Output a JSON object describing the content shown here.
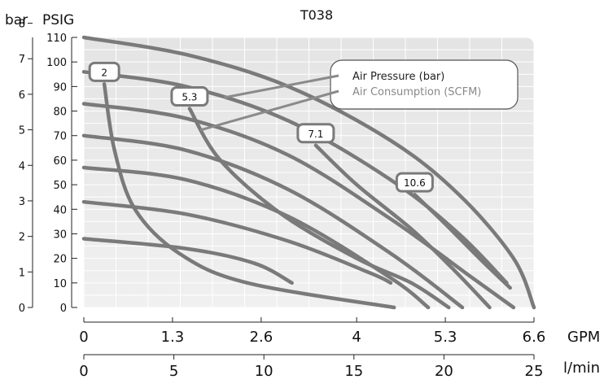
{
  "chart_data": {
    "type": "line",
    "title": "T038",
    "y_left_outer": {
      "label": "bar",
      "ticks": [
        "0",
        "1",
        "2",
        "3",
        "4",
        "5",
        "6",
        "7",
        "8"
      ],
      "range": [
        0,
        7.6
      ]
    },
    "y_left_inner": {
      "label": "PSIG",
      "ticks": [
        "0",
        "10",
        "20",
        "30",
        "40",
        "50",
        "60",
        "70",
        "80",
        "90",
        "100",
        "110"
      ],
      "range": [
        0,
        110
      ]
    },
    "x_top": {
      "label": "GPM",
      "ticks": [
        "0",
        "1.3",
        "2.6",
        "4",
        "5.3",
        "6.6"
      ],
      "range": [
        0,
        6.6
      ]
    },
    "x_bottom": {
      "label": "l/min",
      "ticks": [
        "0",
        "5",
        "10",
        "15",
        "20",
        "25"
      ],
      "range": [
        0,
        25
      ]
    },
    "legend": {
      "position": "top-right",
      "entries": [
        "Air Pressure (bar)",
        "Air Consumption (SCFM)"
      ]
    },
    "series": [
      {
        "group": "air-pressure",
        "points": [
          [
            0,
            110
          ],
          [
            1.5,
            103
          ],
          [
            3,
            90
          ],
          [
            4.5,
            68
          ],
          [
            5.5,
            46
          ],
          [
            6.3,
            20
          ],
          [
            6.6,
            0
          ]
        ]
      },
      {
        "group": "air-pressure",
        "points": [
          [
            0,
            96
          ],
          [
            1.5,
            90
          ],
          [
            3,
            76
          ],
          [
            4.5,
            52
          ],
          [
            5.5,
            30
          ],
          [
            6.2,
            10
          ]
        ]
      },
      {
        "group": "air-pressure",
        "points": [
          [
            0,
            83
          ],
          [
            1.5,
            77
          ],
          [
            3,
            62
          ],
          [
            4.5,
            36
          ],
          [
            5.7,
            12
          ],
          [
            6.3,
            0
          ]
        ]
      },
      {
        "group": "air-pressure",
        "points": [
          [
            0,
            70
          ],
          [
            1.5,
            64
          ],
          [
            3,
            48
          ],
          [
            4.5,
            22
          ],
          [
            5.55,
            0
          ]
        ]
      },
      {
        "group": "air-pressure",
        "points": [
          [
            0,
            57
          ],
          [
            1.5,
            52
          ],
          [
            3,
            37
          ],
          [
            4.5,
            12
          ],
          [
            5.05,
            0
          ]
        ]
      },
      {
        "group": "air-pressure",
        "points": [
          [
            0,
            43
          ],
          [
            1.5,
            38
          ],
          [
            3,
            27
          ],
          [
            4.2,
            14
          ],
          [
            4.5,
            10
          ]
        ]
      },
      {
        "group": "air-pressure",
        "points": [
          [
            0,
            28
          ],
          [
            1.5,
            24
          ],
          [
            2.5,
            18
          ],
          [
            3.05,
            10
          ]
        ]
      },
      {
        "group": "air-consumption",
        "label": "2",
        "points": [
          [
            0.3,
            91
          ],
          [
            0.45,
            64
          ],
          [
            0.75,
            40
          ],
          [
            1.4,
            22
          ],
          [
            2.4,
            10
          ],
          [
            4.55,
            0
          ]
        ]
      },
      {
        "group": "air-consumption",
        "label": "5.3",
        "points": [
          [
            1.55,
            81
          ],
          [
            2,
            60
          ],
          [
            2.9,
            38
          ],
          [
            4,
            20
          ],
          [
            4.8,
            10
          ],
          [
            5.35,
            0
          ]
        ]
      },
      {
        "group": "air-consumption",
        "label": "7.1",
        "points": [
          [
            3.4,
            66
          ],
          [
            4,
            50
          ],
          [
            4.8,
            32
          ],
          [
            5.4,
            16
          ],
          [
            5.95,
            0
          ]
        ]
      },
      {
        "group": "air-consumption",
        "label": "10.6",
        "points": [
          [
            4.85,
            46
          ],
          [
            5.3,
            34
          ],
          [
            5.8,
            20
          ],
          [
            6.25,
            8
          ]
        ]
      }
    ],
    "grid": true
  }
}
